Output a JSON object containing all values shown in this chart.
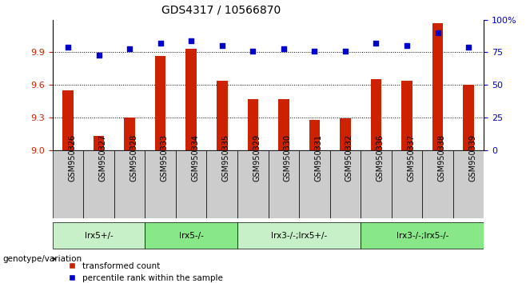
{
  "title": "GDS4317 / 10566870",
  "samples": [
    "GSM950326",
    "GSM950327",
    "GSM950328",
    "GSM950333",
    "GSM950334",
    "GSM950335",
    "GSM950329",
    "GSM950330",
    "GSM950331",
    "GSM950332",
    "GSM950336",
    "GSM950337",
    "GSM950338",
    "GSM950339"
  ],
  "red_values": [
    9.55,
    9.13,
    9.3,
    9.87,
    9.93,
    9.64,
    9.47,
    9.47,
    9.28,
    9.29,
    9.65,
    9.64,
    10.17,
    9.6
  ],
  "blue_values": [
    79,
    73,
    78,
    82,
    84,
    80,
    76,
    78,
    76,
    76,
    82,
    80,
    90,
    79
  ],
  "ylim_left": [
    9.0,
    10.2
  ],
  "ylim_right": [
    0,
    100
  ],
  "yticks_left": [
    9.0,
    9.3,
    9.6,
    9.9
  ],
  "yticks_right": [
    0,
    25,
    50,
    75,
    100
  ],
  "groups": [
    {
      "label": "lrx5+/-",
      "start": 0,
      "end": 3,
      "color": "#c8f0c8"
    },
    {
      "label": "lrx5-/-",
      "start": 3,
      "end": 6,
      "color": "#88e888"
    },
    {
      "label": "lrx3-/-;lrx5+/-",
      "start": 6,
      "end": 10,
      "color": "#c8f0c8"
    },
    {
      "label": "lrx3-/-;lrx5-/-",
      "start": 10,
      "end": 14,
      "color": "#88e888"
    }
  ],
  "bar_color": "#cc2200",
  "dot_color": "#0000cc",
  "bg_color": "#ffffff",
  "plot_bg": "#ffffff",
  "sample_box_color": "#cccccc",
  "title_fontsize": 10,
  "tick_label_fontsize": 7,
  "axis_label_fontsize": 8,
  "genotype_label": "genotype/variation",
  "legend_red": "transformed count",
  "legend_blue": "percentile rank within the sample"
}
